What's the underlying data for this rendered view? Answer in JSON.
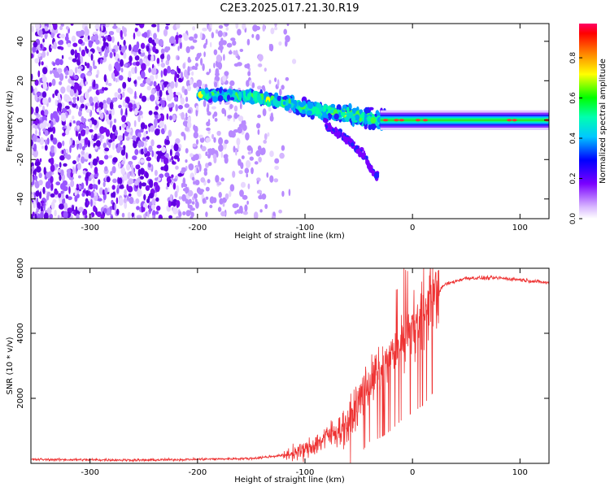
{
  "title": "C2E3.2025.017.21.30.R19",
  "chart_data": [
    {
      "type": "heatmap",
      "xlabel": "Height of straight line (km)",
      "ylabel": "Frequency (Hz)",
      "xlim": [
        -355,
        127
      ],
      "ylim": [
        -50,
        49
      ],
      "x_ticks": [
        -300,
        -200,
        -100,
        0,
        100
      ],
      "y_ticks": [
        -40,
        -20,
        0,
        20,
        40
      ],
      "colorbar": {
        "label": "Normalized spectral amplitude",
        "range": [
          0,
          0.97
        ],
        "ticks": [
          0.0,
          0.2,
          0.4,
          0.6,
          0.8
        ],
        "tick_labels": [
          "0.0",
          "0.2",
          "0.4",
          "0.6",
          "0.8"
        ]
      },
      "features": {
        "noise_region_x": [
          -355,
          -120
        ],
        "band_center_points": [
          {
            "x": -185,
            "y": 13
          },
          {
            "x": -150,
            "y": 12
          },
          {
            "x": -120,
            "y": 9
          },
          {
            "x": -90,
            "y": 5
          },
          {
            "x": -60,
            "y": 3
          },
          {
            "x": -40,
            "y": 1
          },
          {
            "x": -20,
            "y": 0
          },
          {
            "x": 0,
            "y": 1
          },
          {
            "x": 50,
            "y": 0
          },
          {
            "x": 127,
            "y": 0
          }
        ],
        "lower_branch": [
          {
            "x": -80,
            "y": -3
          },
          {
            "x": -60,
            "y": -10
          },
          {
            "x": -45,
            "y": -18
          },
          {
            "x": -35,
            "y": -28
          }
        ]
      }
    },
    {
      "type": "line",
      "xlabel": "Height of straight line (km)",
      "ylabel": "SNR (10 * v/v)",
      "xlim": [
        -355,
        127
      ],
      "ylim": [
        0,
        6000
      ],
      "x_ticks": [
        -300,
        -200,
        -100,
        0,
        100
      ],
      "y_ticks": [
        2000,
        4000,
        6000
      ],
      "color": "#ee3333",
      "trend": [
        {
          "x": -355,
          "y": 120
        },
        {
          "x": -250,
          "y": 100
        },
        {
          "x": -150,
          "y": 150
        },
        {
          "x": -120,
          "y": 250
        },
        {
          "x": -100,
          "y": 400
        },
        {
          "x": -80,
          "y": 800
        },
        {
          "x": -60,
          "y": 1200
        },
        {
          "x": -50,
          "y": 1900
        },
        {
          "x": -40,
          "y": 2500
        },
        {
          "x": -30,
          "y": 2800
        },
        {
          "x": -20,
          "y": 3200
        },
        {
          "x": -10,
          "y": 3700
        },
        {
          "x": 0,
          "y": 4100
        },
        {
          "x": 10,
          "y": 4500
        },
        {
          "x": 20,
          "y": 5100
        },
        {
          "x": 30,
          "y": 5500
        },
        {
          "x": 50,
          "y": 5700
        },
        {
          "x": 80,
          "y": 5700
        },
        {
          "x": 100,
          "y": 5650
        },
        {
          "x": 127,
          "y": 5550
        }
      ]
    }
  ]
}
